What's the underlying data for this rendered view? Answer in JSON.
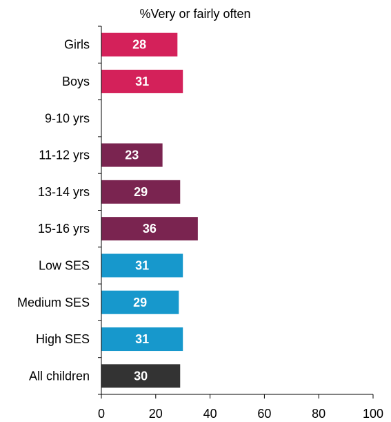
{
  "chart_data": {
    "type": "bar",
    "orientation": "horizontal",
    "title": "%Very or fairly often",
    "categories": [
      "Girls",
      "Boys",
      "9-10 yrs",
      "11-12 yrs",
      "13-14 yrs",
      "15-16 yrs",
      "Low  SES",
      "Medium SES",
      "High SES",
      "All children"
    ],
    "values": [
      28,
      31,
      null,
      23,
      29,
      36,
      31,
      29,
      31,
      30
    ],
    "bar_lengths": [
      28,
      30,
      null,
      22.5,
      29,
      35.5,
      30,
      28.5,
      30,
      29
    ],
    "data_labels": [
      "28",
      "31",
      "",
      "23",
      "29",
      "36",
      "31",
      "29",
      "31",
      "30"
    ],
    "bar_colors": [
      "#d4215a",
      "#d4215a",
      "#7a2450",
      "#7a2450",
      "#7a2450",
      "#7a2450",
      "#1798cc",
      "#1798cc",
      "#1798cc",
      "#333333"
    ],
    "xlim": [
      0,
      100
    ],
    "xticks": [
      "0",
      "20",
      "40",
      "60",
      "80",
      "100"
    ],
    "xtick_values": [
      0,
      20,
      40,
      60,
      80,
      100
    ],
    "xlabel": "",
    "ylabel": "",
    "grid": false,
    "legend": "none"
  }
}
